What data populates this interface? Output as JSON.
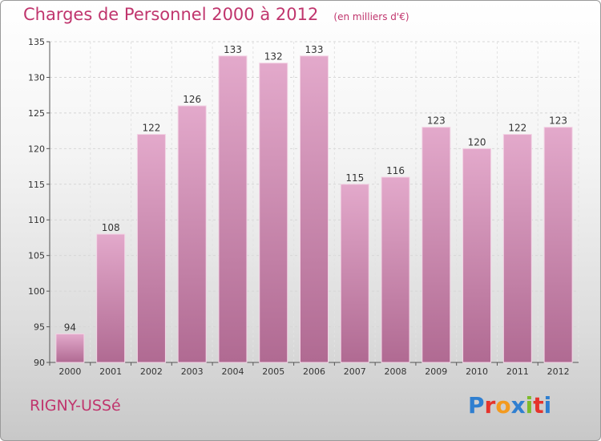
{
  "title": "Charges de Personnel 2000 à 2012",
  "unit_note": "(en milliers d'€)",
  "location": "RIGNY-USSé",
  "logo": {
    "text": "Proxiti",
    "letter_colors": [
      "#2f7fd0",
      "#e5342c",
      "#f39a1f",
      "#2f7fd0",
      "#7dbb2b",
      "#e5342c",
      "#2f7fd0"
    ]
  },
  "colors": {
    "bar_top": "#e3a9cb",
    "bar_bottom": "#b06a92",
    "accent": "#c0356d"
  },
  "chart_data": {
    "type": "bar",
    "title": "Charges de Personnel 2000 à 2012",
    "categories": [
      "2000",
      "2001",
      "2002",
      "2003",
      "2004",
      "2005",
      "2006",
      "2007",
      "2008",
      "2009",
      "2010",
      "2011",
      "2012"
    ],
    "values": [
      94,
      108,
      122,
      126,
      133,
      132,
      133,
      115,
      116,
      123,
      120,
      122,
      123
    ],
    "ylim": [
      90,
      135
    ],
    "yticks": [
      90,
      95,
      100,
      105,
      110,
      115,
      120,
      125,
      130,
      135
    ],
    "grid": true,
    "xlabel": "",
    "ylabel": ""
  }
}
